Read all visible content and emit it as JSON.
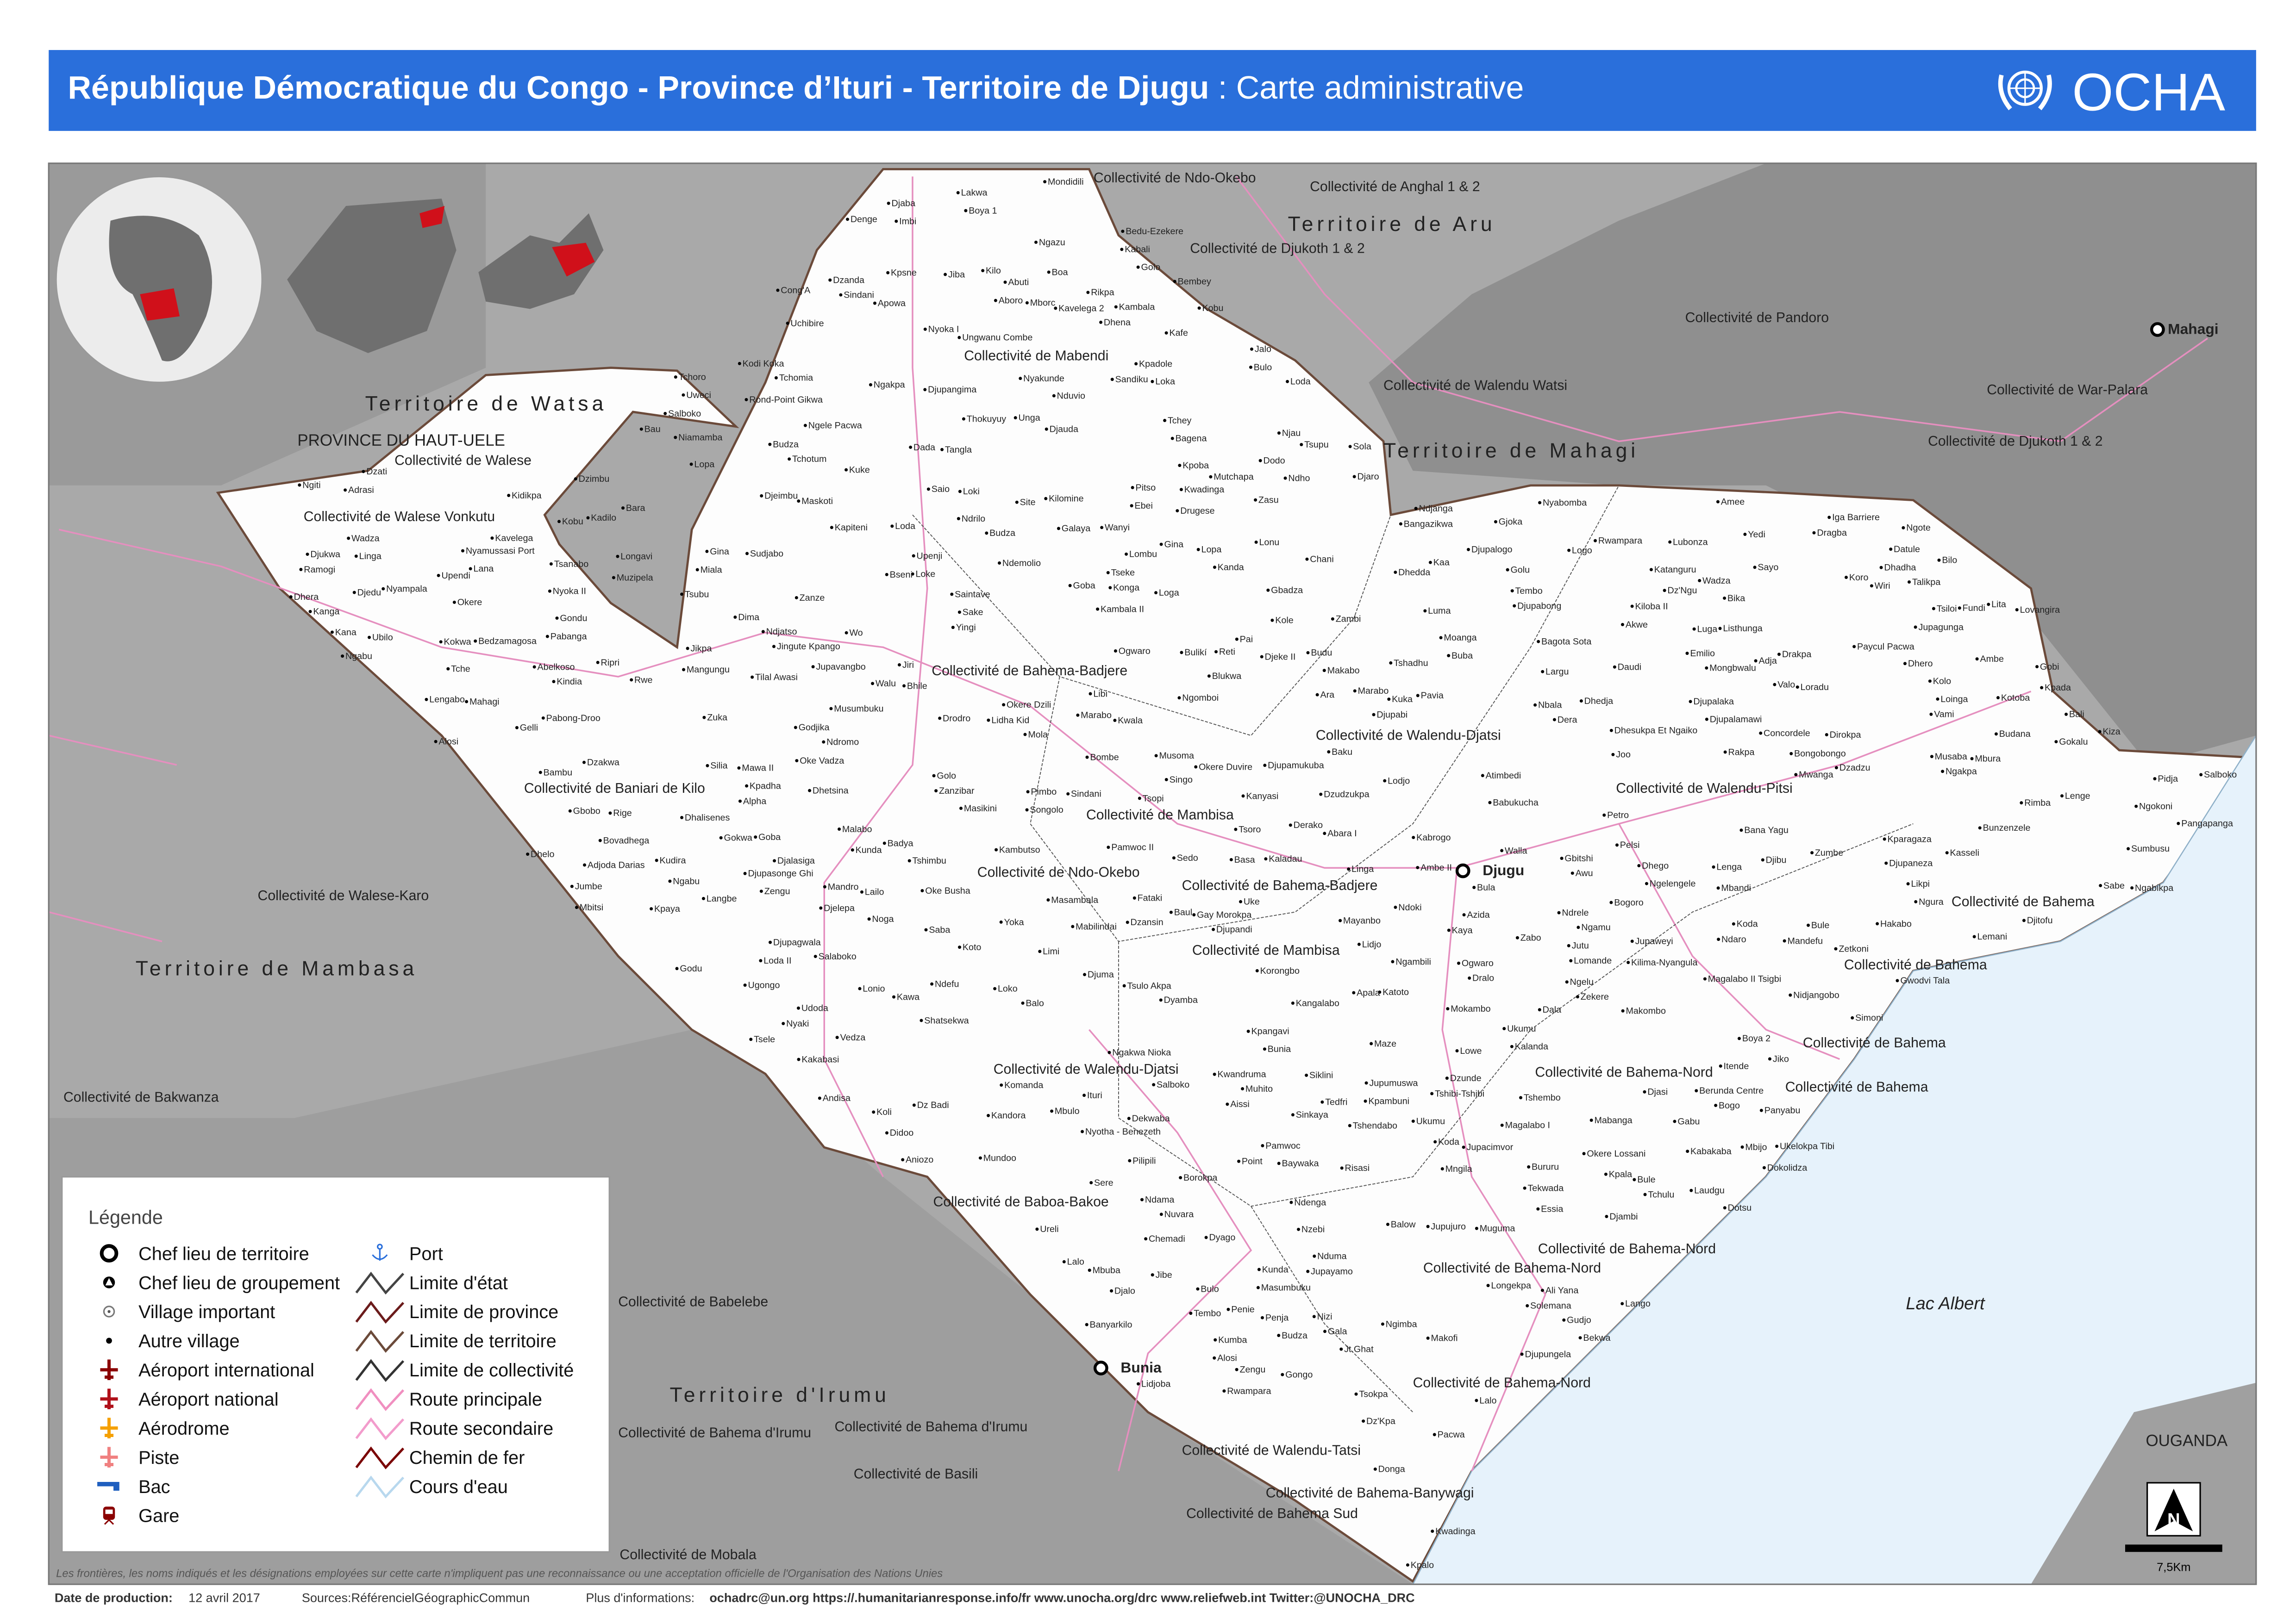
{
  "header": {
    "title_bold": "République Démocratique du Congo - Province d’Ituri - Territoire de Djugu",
    "title_regular": " : Carte administrative",
    "logo_text": "OCHA",
    "color": "#2a6fdb"
  },
  "map": {
    "colors": {
      "territory": "#ffffff",
      "surrounding": "#a9a9a9",
      "lake": "#e6f2fb",
      "road": "#e58fbf",
      "collectivity_border": "#555555"
    },
    "territory_labels": [
      "Territoire de Watsa",
      "Territoire de Aru",
      "Territoire de Mahagi",
      "Territoire de Mambasa",
      "Territoire d'Irumu"
    ],
    "region_labels": [
      "PROVINCE DU HAUT-UELE",
      "OUGANDA",
      "Lac Albert"
    ],
    "collectivity_labels": [
      "Collectivité de Ndo-Okebo",
      "Collectivité de Anghal 1 & 2",
      "Collectivité de Djukoth 1 & 2",
      "Collectivité de Walese",
      "Collectivité de Mabendi",
      "Collectivité de Pandoro",
      "Collectivité de Walendu Watsi",
      "Collectivité de War-Palara",
      "Collectivité de Djukoth 1 & 2",
      "Collectivité de Bahema-Badjere",
      "Collectivité de Walendu-Djatsi",
      "Collectivité de Baniari de Kilo",
      "Collectivité de Walendu-Pitsi",
      "Collectivité de Mambisa",
      "Collectivité de Ndo-Okebo",
      "Collectivité de Bahema-Badjere",
      "Collectivité de Walese-Karo",
      "Collectivité de Mambisa",
      "Collectivité de Bahema",
      "Collectivité de Bahema",
      "Collectivité de Bahema",
      "Collectivité de Bahema",
      "Collectivité de Walendu-Djatsi",
      "Collectivité de Bahema-Nord",
      "Collectivité de Bakwanza",
      "Collectivité de Baboa-Bakoe",
      "Collectivité de Bahema-Nord",
      "Collectivité de Bahema-Nord",
      "Collectivité de Babelebe",
      "Collectivité de Bahema-Nord",
      "Collectivité de Bahema d'Irumu",
      "Collectivité de Walendu-Tatsi",
      "Collectivité de Basili",
      "Collectivité de Bahema-Banywagi",
      "Collectivité de Bahema Sud",
      "Collectivité de Walese Vonkutu",
      "Collectivité de Mobala",
      "Collectivité de Bahema d'Irumu"
    ],
    "chief_towns": [
      "Djugu",
      "Bunia",
      "Mahagi"
    ],
    "places": [
      "Baku",
      "Ebei",
      "Kaladau",
      "Koto",
      "Golu",
      "Site",
      "Pai",
      "Jupavangbo",
      "Berunda Centre",
      "Adrasi",
      "Mborc",
      "Pimbo",
      "Bara",
      "Tilal Awasi",
      "Gelli",
      "Essia",
      "Dzudzukpa",
      "Abara I",
      "Okere Lossani",
      "Kumba",
      "Kabali",
      "Kudira",
      "Nyoka II",
      "Nyoka I",
      "Bombe",
      "Rwe",
      "Okere",
      "Okere Dzili",
      "Okere Duvire",
      "Mbura",
      "Pilipili",
      "Makofi",
      "Abuti",
      "Tsopi",
      "Oke Vadza",
      "Wanyi",
      "Oke Busha",
      "Limi",
      "Saio",
      "Imbi",
      "Kanda",
      "Maskoti",
      "Dhego",
      "Bongobongo",
      "Rond-Point Gikwa",
      "Dokolidza",
      "Jingute Kpango",
      "Korongbo",
      "Gay Morokpa",
      "Djupabi",
      "Ambe",
      "Kadilo",
      "Nduvio",
      "Kambala II",
      "Mbitsi",
      "Ndho",
      "Tedfri",
      "Kambala",
      "Mondidili",
      "Kandora",
      "Pavia",
      "Bururu",
      "Dzansin",
      "Ubilo",
      "Masambala",
      "Galaya",
      "Yedi",
      "Lodjo",
      "Loki",
      "Mbijo",
      "Loke",
      "Akwe",
      "Mundoo",
      "Zuka",
      "Musaba",
      "Kangalabo",
      "Kakabasi",
      "Apowa",
      "Drugese",
      "Bangazikwa",
      "Bovadhega",
      "Kana",
      "Chemadi",
      "Nduma",
      "Tembo",
      "Drakpa",
      "Loda",
      "Dima",
      "Penja",
      "Gbadza",
      "Dala",
      "Sindani",
      "Ngakpa",
      "Kapiteni",
      "Uchibire",
      "Zengu",
      "Djitofu",
      "Tshibi-Tshibi",
      "Andisa",
      "Nzebi",
      "Sayo",
      "Mabilindai",
      "Kanga",
      "Mongbwalu",
      "Upenji",
      "Ndromo",
      "Lalo",
      "Ungwanu Combe",
      "Siklini",
      "Musoma",
      "Ukelokpa Tibi",
      "Kwadinga",
      "Budu",
      "Uweci",
      "Djedu",
      "Mngila",
      "Dotsu",
      "Likpi",
      "Njau",
      "Wiri",
      "Ngamu",
      "Gokalu",
      "Dzadzu",
      "Unga",
      "Goba",
      "Basa",
      "Lenga",
      "Zabo",
      "Kobu",
      "Mabanga",
      "Tekwada",
      "Gobi",
      "Kwadinga",
      "Abelkoso",
      "Bedzamagosa",
      "Ituri",
      "Bagena",
      "Simoni",
      "Wadza",
      "Kilo",
      "Kilomine",
      "Bambu",
      "Banyarkilo",
      "Itende",
      "Alosi",
      "Salboko",
      "Kabakaba",
      "Lubonza",
      "Bunzenzele",
      "Sindani",
      "Lakwa",
      "Nizi",
      "Iga Barriere",
      "Lopa",
      "Pangapanga",
      "Gina",
      "Ndjanga",
      "Saba",
      "Kpadole",
      "Risasi",
      "Bau",
      "Dhadha",
      "Bekwa",
      "Lomande",
      "Bogo",
      "Fataki",
      "Libi",
      "Tsupu",
      "Dhena",
      "Lalo",
      "Sere",
      "Rakpa",
      "Mandefu",
      "Ngiti",
      "Djukwa",
      "Balow",
      "Dralo",
      "Gudjo",
      "Dhera",
      "Ngakpa",
      "Lana",
      "Lidha Kid",
      "Kuke",
      "Dzakwa",
      "Kpambuni",
      "Lombu",
      "Kiloba II",
      "Zanze",
      "Konga",
      "Ukumu",
      "Bali",
      "Sake",
      "Bula",
      "Fundi",
      "Lailo",
      "Longavi",
      "Budza",
      "Dhetsina",
      "Mola",
      "Loradu",
      "Kwala",
      "Vedza",
      "Djelepa",
      "Kpaya",
      "Godjika",
      "Dyamba",
      "Bika",
      "Linga",
      "Ngomboi",
      "Lopa",
      "Tseke",
      "Ngokoni",
      "Bilo",
      "Noga",
      "Sola",
      "Buba",
      "Djeimbu",
      "Tembo",
      "Donga",
      "Djalo",
      "Masikini",
      "Djaba",
      "Bule",
      "Dzati",
      "Sandiku",
      "Kaa",
      "Gokwa",
      "Adja",
      "Sumbusu",
      "Valo",
      "Tsulo Akpa",
      "Ngabikpa",
      "Dada",
      "Jiba",
      "Ngelu",
      "Tsokpa",
      "Uke",
      "Dyago",
      "Azida",
      "Loinga",
      "Longekpa",
      "Djeke II",
      "Rikpa",
      "Dekwaba",
      "Rige",
      "Tchotum",
      "Mbuba",
      "Udoda",
      "Djibu",
      "Kasseli",
      "Golo",
      "Petro",
      "Talikpa",
      "Jibe",
      "Jikpa",
      "Kpalo",
      "Lowe",
      "Dhedja",
      "Djauda",
      "Jiko",
      "Dhedda",
      "Laudgu",
      "Didoo",
      "Lidjoba",
      "Dhero",
      "Goba",
      "Gjoka",
      "Jalo",
      "Maze",
      "Jiri",
      "Kpadha",
      "Langbe",
      "Joo",
      "Bseni",
      "Gondu",
      "Pitso",
      "Nyampala",
      "Dirokpa",
      "Listhunga",
      "Gina",
      "Kiza",
      "Gbobo",
      "Tsoro",
      "Musumbuku",
      "Dhesukpa Et Ngaiko",
      "Shatsekwa",
      "Drodro",
      "Tchoro",
      "Djaro",
      "Koli",
      "Wadza",
      "Largu",
      "Blukwa",
      "Djambi",
      "Gbitshi",
      "Loka",
      "Kpoba",
      "Koda",
      "Jutu",
      "Ndoki",
      "Budza",
      "Ndrilo",
      "Bhile",
      "Loko",
      "Nbala",
      "Ngabu",
      "Pidja",
      "Nidjangobo",
      "Tchey",
      "Yoka",
      "Zetkoni",
      "Tshadhu",
      "Golo",
      "Masumbuku",
      "Bule",
      "Dz'Kpa",
      "Bulo",
      "Salboko",
      "Ndjatso",
      "Katoto",
      "Dz'Ngu",
      "Singo",
      "Tche",
      "Kpangavi",
      "Mbulo",
      "Loga",
      "Tshimbu",
      "Baul",
      "Lonu",
      "Kparagaza",
      "Lidjo",
      "Dera",
      "Kpala",
      "Tchulu",
      "Lonio",
      "Dzimbu",
      "Tsubu",
      "Malabo",
      "Penie",
      "Boa",
      "Kawa",
      "Kafe",
      "Balo",
      "Jt.Ghat",
      "Niamamba",
      "Sabe",
      "Datule",
      "Tchomia",
      "Nyamussasi Port",
      "Kambutso",
      "Zumbe",
      "Borokpa",
      "Rwampara",
      "Muhito",
      "Tshembo",
      "Lovangira",
      "Kabrogo",
      "Kalanda",
      "Mandro",
      "Bembey",
      "Saintave",
      "Muzipela",
      "Komanda",
      "Solemana",
      "Miala",
      "Mwanga",
      "Salaboko",
      "Magalabo I",
      "Magalabo II Tsigbi",
      "Kole",
      "Moanga",
      "Kunda",
      "Lemani",
      "Kuka",
      "Tsiloi",
      "Lita",
      "Dz Badi",
      "Kpsne",
      "Ripri",
      "Luma",
      "Tsele",
      "Pelsi",
      "Alosi",
      "Kolo",
      "Kobu",
      "Djasi",
      "Mahagi",
      "Kilima-Nyangula",
      "Ogwaro",
      "Ngabu",
      "Pamwoc II",
      "Jupagunga",
      "Ngote",
      "Djalasiga",
      "Ndrele",
      "Pacwa",
      "Logo",
      "Ndama",
      "Ngele Pacwa",
      "Nyaki",
      "Djupagwala",
      "Djupandi",
      "Amee",
      "Katanguru",
      "Jupayamo",
      "Derako",
      "Mutchapa",
      "Awu",
      "Gabu",
      "Ngakwa Nioka",
      "Ndefu",
      "Mawa II",
      "Ambe II",
      "Rimba",
      "Sedo",
      "Bana Yagu",
      "Pabanga",
      "Dragba",
      "Zanzibar",
      "Djuma",
      "Ali Yana",
      "Panyabu",
      "Paycul Pacwa",
      "Pamwoc",
      "Pabong-Droo",
      "Djupalogo",
      "Djupalamawi",
      "Luga",
      "Djupaneza",
      "Jupujuro",
      "Aissi",
      "Gwodvi Tala",
      "Tangla",
      "Djupabong",
      "Djupalaka",
      "Wo",
      "Jupacimvor",
      "Kodi Koka",
      "Adjoda Darias",
      "Zengu",
      "Ugongo",
      "Nyabomba",
      "Budza",
      "Kpada",
      "Thokuyuy",
      "Kidikpa",
      "Nyotha - Benezeth",
      "Cong'A",
      "Koda",
      "Loda",
      "Gala",
      "Emilio",
      "Aboro",
      "Muguma",
      "Jupumuswa",
      "Ndaro",
      "Apala",
      "Mokambo",
      "Ara",
      "Ramogi",
      "Walla",
      "Point",
      "Denge",
      "Godu",
      "Bulo",
      "Ureli",
      "Atimbedi",
      "Upendi",
      "Zambi",
      "Koro",
      "Loda II",
      "Daudi",
      "Kokwa",
      "Kwandruma",
      "Mangungu",
      "Ukumu",
      "Zasu",
      "Reti",
      "Djupangima",
      "Yingi",
      "Ngelengele",
      "Lenge",
      "Ogwaro",
      "Dhelo",
      "Djupasonge Ghi",
      "Dhalisenes",
      "Djupungela",
      "Djupamukuba",
      "Lango",
      "Jupaweyi",
      "Dzanda",
      "Nuvara",
      "Kunda",
      "Sudjabo",
      "Walu",
      "Vami",
      "Salboko",
      "Tsanabo",
      "Makombo",
      "Tshendabo",
      "Marabo",
      "Baywaka",
      "Hakabo",
      "Budana",
      "Kanyasi",
      "Ndenga",
      "Alpha",
      "Ngura",
      "Kindia",
      "Bunia",
      "Concordele",
      "Babukucha",
      "Makabo",
      "Bogoro",
      "Zekere",
      "Linga",
      "Mayanbo",
      "Gongo",
      "Ngazu",
      "Badya",
      "Silia",
      "Kaya",
      "Boya 2",
      "Ngimba",
      "Mbandi",
      "Ngambili",
      "Boya 1",
      "Marabo",
      "Nyakunde",
      "Sinkaya",
      "Bulikí",
      "Ndemolio",
      "Aniozo",
      "Songolo",
      "Jumbe",
      "Dzunde",
      "Kavelega",
      "Bedu-Ezekere",
      "Dodo",
      "Kavelega 2",
      "Chani",
      "Bagota Sota",
      "Rwampara",
      "Lengabo",
      "Kotoba"
    ]
  },
  "legend": {
    "title": "Légende",
    "items_left": [
      {
        "label": "Chef lieu de territoire",
        "icon": "chief-town-territory"
      },
      {
        "label": "Chef lieu de groupement",
        "icon": "chief-town-group"
      },
      {
        "label": "Village important",
        "icon": "village-important"
      },
      {
        "label": "Autre village",
        "icon": "other-village"
      },
      {
        "label": "Aéroport international",
        "icon": "airport-international",
        "color": "#8b0000"
      },
      {
        "label": "Aéroport national",
        "icon": "airport-national",
        "color": "#b0101a"
      },
      {
        "label": "Aérodrome",
        "icon": "aerodrome",
        "color": "#f5a000"
      },
      {
        "label": "Piste",
        "icon": "airstrip",
        "color": "#f08080"
      },
      {
        "label": "Bac",
        "icon": "ferry",
        "color": "#1f5fbf"
      },
      {
        "label": "Gare",
        "icon": "train-station",
        "color": "#8b0000"
      }
    ],
    "items_right": [
      {
        "label": "Port",
        "icon": "anchor",
        "color": "#2a6fdb"
      },
      {
        "label": "Limite d'état",
        "icon": "line",
        "color": "#444444"
      },
      {
        "label": "Limite de province",
        "icon": "line",
        "color": "#6b1b1b"
      },
      {
        "label": "Limite de territoire",
        "icon": "line",
        "color": "#6b4a3a"
      },
      {
        "label": "Limite de collectivité",
        "icon": "line",
        "color": "#333333"
      },
      {
        "label": "Route principale",
        "icon": "line",
        "color": "#f08fc0"
      },
      {
        "label": "Route secondaire",
        "icon": "line",
        "color": "#f29ccc"
      },
      {
        "label": "Chemin de fer",
        "icon": "line",
        "color": "#7a0000"
      },
      {
        "label": "Cours d'eau",
        "icon": "line",
        "color": "#b8d8ee"
      }
    ]
  },
  "scale": {
    "label": "7,5Km",
    "north": "N"
  },
  "footer": {
    "disclaimer": "Les frontières, les noms indiqués et les désignations employées sur cette carte n'impliquent pas une reconnaissance ou une acceptation officielle de l'Organisation des Nations Unies",
    "production_label": "Date de production:",
    "production_date": "12 avril 2017",
    "sources": "Sources:RéférencielGéographicCommun",
    "more_info_label": "Plus d'informations:",
    "more_info": "ochadrc@un.org https://.humanitarianresponse.info/fr www.unocha.org/drc www.reliefweb.int Twitter:@UNOCHA_DRC"
  }
}
